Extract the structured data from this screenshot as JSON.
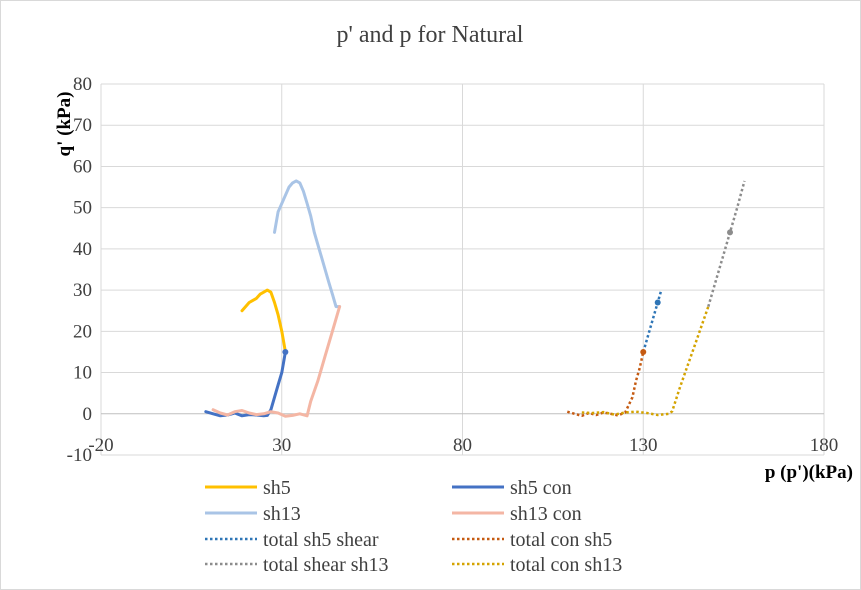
{
  "chart_data": {
    "type": "scatter",
    "title": "p' and p for Natural",
    "xlabel": "p (p')(kPa)",
    "ylabel": "q' (kPa)",
    "xlim": [
      -20,
      180
    ],
    "ylim": [
      -10,
      80
    ],
    "x_ticks": [
      -20,
      30,
      80,
      130,
      180
    ],
    "y_ticks": [
      -10,
      0,
      10,
      20,
      30,
      40,
      50,
      60,
      70,
      80
    ],
    "grid": true,
    "legend_position": "bottom",
    "series": [
      {
        "name": "sh5",
        "color": "#FFC000",
        "dash": "solid",
        "x": [
          19,
          20,
          21,
          22,
          23,
          24,
          25,
          26,
          27,
          28,
          29,
          30,
          31
        ],
        "y": [
          25,
          26,
          27,
          27.5,
          28,
          29,
          29.5,
          30,
          29.5,
          27,
          24,
          20,
          15
        ]
      },
      {
        "name": "sh5 con",
        "color": "#4472C4",
        "dash": "solid",
        "x": [
          9,
          11,
          13,
          15,
          17,
          19,
          21,
          23,
          25,
          26,
          27,
          28,
          29,
          30,
          31
        ],
        "y": [
          0.5,
          0,
          -0.5,
          -0.3,
          0.2,
          -0.5,
          -0.2,
          -0.3,
          -0.5,
          -0.4,
          1,
          4,
          7,
          10,
          15
        ]
      },
      {
        "name": "sh13",
        "color": "#A9C4E6",
        "dash": "solid",
        "x": [
          28,
          29,
          30,
          31,
          32,
          33,
          34,
          35,
          36,
          37,
          38,
          39,
          40,
          41,
          42,
          43,
          44,
          45,
          46
        ],
        "y": [
          44,
          49,
          51,
          53,
          55,
          56,
          56.5,
          56,
          54,
          51,
          48,
          44,
          41,
          38,
          35,
          32,
          29,
          26,
          26
        ]
      },
      {
        "name": "sh13 con",
        "color": "#F4B6A4",
        "dash": "solid",
        "x": [
          11,
          13,
          15,
          17,
          19,
          21,
          23,
          25,
          27,
          29,
          31,
          33,
          35,
          37,
          38,
          40,
          42,
          44,
          46
        ],
        "y": [
          1,
          0.2,
          -0.3,
          0.5,
          0.8,
          0.2,
          -0.2,
          0,
          0.5,
          0.2,
          -0.6,
          -0.4,
          0,
          -0.5,
          3,
          8,
          14,
          20,
          26
        ]
      },
      {
        "name": "total sh5 shear",
        "color": "#2E75B6",
        "dash": "dotted",
        "x": [
          130,
          131,
          132,
          133,
          134,
          135
        ],
        "y": [
          15,
          18,
          21,
          24,
          27,
          30
        ]
      },
      {
        "name": "total con sh5",
        "color": "#C55A11",
        "dash": "dotted",
        "x": [
          109,
          111,
          113,
          115,
          117,
          119,
          121,
          123,
          125,
          127,
          128,
          129,
          130
        ],
        "y": [
          0.5,
          0,
          -0.5,
          0.2,
          -0.3,
          0.3,
          0,
          -0.4,
          0.3,
          4,
          8,
          11,
          15
        ]
      },
      {
        "name": "total shear sh13",
        "color": "#8C8C8C",
        "dash": "dotted",
        "x": [
          148,
          150,
          152,
          154,
          156,
          158
        ],
        "y": [
          26,
          32,
          38,
          44,
          50,
          56.5
        ]
      },
      {
        "name": "total con sh13",
        "color": "#D4A300",
        "dash": "dotted",
        "x": [
          113,
          116,
          119,
          122,
          125,
          128,
          131,
          134,
          137,
          138,
          140,
          142,
          144,
          146,
          148
        ],
        "y": [
          0.3,
          0.2,
          0.4,
          -0.2,
          0.3,
          0.5,
          0.2,
          -0.3,
          0,
          0.6,
          6,
          11,
          16,
          21,
          26
        ]
      }
    ]
  }
}
